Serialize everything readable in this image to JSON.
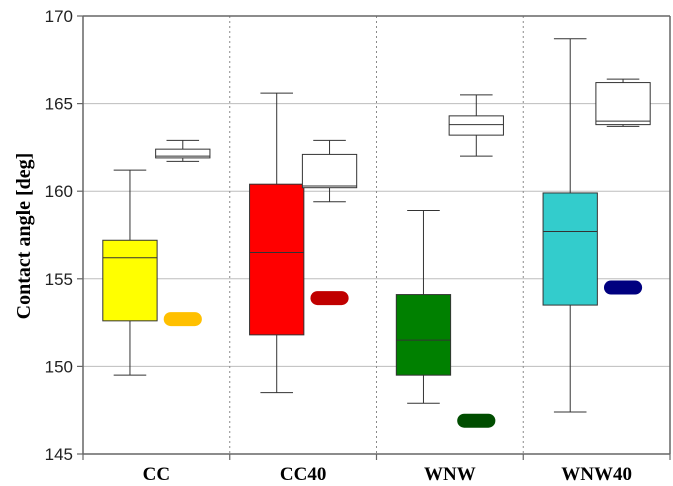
{
  "chart_data": {
    "type": "box",
    "ylabel": "Contact angle [deg]",
    "xlabel": "",
    "ylim": [
      145,
      170
    ],
    "yticks": [
      "145",
      "150",
      "155",
      "160",
      "165",
      "170"
    ],
    "grid": "horizontal",
    "categories": [
      "CC",
      "CC40",
      "WNW",
      "WNW40"
    ],
    "boxes": [
      {
        "category": "CC",
        "color": "#ffff00",
        "whisker_low": 149.5,
        "q1": 152.6,
        "median": 156.2,
        "q3": 157.2,
        "whisker_high": 161.2
      },
      {
        "category": "CC",
        "color": "#ffffff",
        "whisker_low": 161.7,
        "q1": 161.9,
        "median": 162.0,
        "q3": 162.4,
        "whisker_high": 162.9
      },
      {
        "category": "CC40",
        "color": "#ff0000",
        "whisker_low": 148.5,
        "q1": 151.8,
        "median": 156.5,
        "q3": 160.4,
        "whisker_high": 165.6
      },
      {
        "category": "CC40",
        "color": "#ffffff",
        "whisker_low": 159.4,
        "q1": 160.2,
        "median": 160.3,
        "q3": 162.1,
        "whisker_high": 162.9
      },
      {
        "category": "WNW",
        "color": "#008000",
        "whisker_low": 147.9,
        "q1": 149.5,
        "median": 151.5,
        "q3": 154.1,
        "whisker_high": 158.9
      },
      {
        "category": "WNW",
        "color": "#ffffff",
        "whisker_low": 162.0,
        "q1": 163.2,
        "median": 163.8,
        "q3": 164.3,
        "whisker_high": 165.5
      },
      {
        "category": "WNW40",
        "color": "#33cccc",
        "whisker_low": 147.4,
        "q1": 153.5,
        "median": 157.7,
        "q3": 159.9,
        "whisker_high": 168.7
      },
      {
        "category": "WNW40",
        "color": "#ffffff",
        "whisker_low": 163.7,
        "q1": 163.8,
        "median": 164.0,
        "q3": 166.2,
        "whisker_high": 166.4
      }
    ],
    "markers": [
      {
        "category": "CC",
        "value": 152.7,
        "color": "#ffc000"
      },
      {
        "category": "CC40",
        "value": 153.9,
        "color": "#c00000"
      },
      {
        "category": "WNW",
        "value": 146.9,
        "color": "#004d00"
      },
      {
        "category": "WNW40",
        "value": 154.5,
        "color": "#00007f"
      }
    ]
  }
}
